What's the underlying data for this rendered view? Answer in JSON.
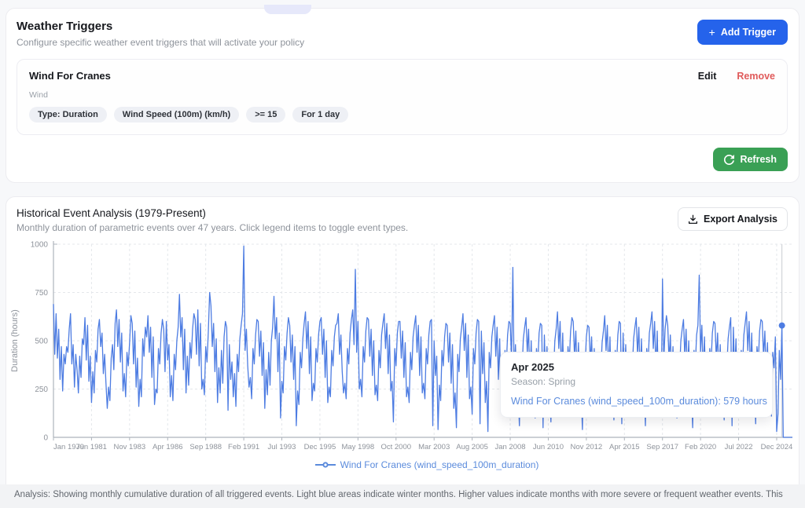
{
  "weather_triggers": {
    "title": "Weather Triggers",
    "subtitle": "Configure specific weather event triggers that will activate your policy",
    "add_button_label": "Add Trigger",
    "trigger": {
      "name": "Wind For Cranes",
      "category": "Wind",
      "edit_label": "Edit",
      "remove_label": "Remove",
      "tags": [
        "Type: Duration",
        "Wind Speed (100m) (km/h)",
        ">= 15",
        "For 1 day"
      ]
    },
    "refresh_button_label": "Refresh"
  },
  "analysis_section": {
    "title": "Historical Event Analysis (1979-Present)",
    "subtitle": "Monthly duration of parametric events over 47 years. Click legend items to toggle event types.",
    "export_button_label": "Export Analysis",
    "tooltip": {
      "title": "Apr 2025",
      "season": "Season: Spring",
      "value_line": "Wind For Cranes (wind_speed_100m_duration): 579 hours"
    },
    "legend_label": "Wind For Cranes (wind_speed_100m_duration)",
    "footer_note": "Analysis: Showing monthly cumulative duration of all triggered events. Light blue areas indicate winter months. Higher values indicate months with more severe or frequent weather events. This"
  },
  "colors": {
    "accent_blue": "#2563eb",
    "green": "#3aa055",
    "red": "#e05b5b",
    "line_blue": "#4d7ce2",
    "link_blue": "#5b8bdc",
    "grid": "#e4e7eb",
    "axis": "#aeb4bc",
    "tick_text": "#8e939b",
    "crosshair": "#c9ccd2"
  },
  "chart_data": {
    "type": "line",
    "title": "Historical Event Analysis (1979-Present)",
    "ylabel": "Duration (hours)",
    "ylim": [
      0,
      1000
    ],
    "yticks": [
      0,
      250,
      500,
      750,
      1000
    ],
    "grid": "dashed",
    "legend_position": "bottom",
    "x_start": "Jan 1979",
    "x_end": "Dec 2025",
    "xtick_indices": [
      0,
      29,
      58,
      87,
      116,
      145,
      174,
      203,
      232,
      261,
      290,
      319,
      348,
      377,
      406,
      435,
      464,
      493,
      522,
      551
    ],
    "xticklabels": [
      "Jan 1979",
      "Jun 1981",
      "Nov 1983",
      "Apr 1986",
      "Sep 1988",
      "Feb 1991",
      "Jul 1993",
      "Dec 1995",
      "May 1998",
      "Oct 2000",
      "Mar 2003",
      "Aug 2005",
      "Jan 2008",
      "Jun 2010",
      "Nov 2012",
      "Apr 2015",
      "Sep 2017",
      "Feb 2020",
      "Jul 2022",
      "Dec 2024"
    ],
    "highlight": {
      "label": "Apr 2025",
      "index": 555,
      "value": 579
    },
    "series": [
      {
        "name": "Wind For Cranes (wind_speed_100m_duration)",
        "color": "#4d7ce2",
        "values": [
          690,
          430,
          640,
          410,
          560,
          300,
          470,
          240,
          430,
          380,
          470,
          440,
          560,
          640,
          380,
          480,
          260,
          430,
          350,
          230,
          420,
          310,
          510,
          480,
          620,
          400,
          580,
          290,
          420,
          180,
          340,
          230,
          450,
          390,
          560,
          610,
          470,
          540,
          330,
          430,
          280,
          150,
          260,
          190,
          410,
          480,
          350,
          590,
          660,
          470,
          610,
          390,
          540,
          240,
          330,
          210,
          440,
          370,
          490,
          630,
          590,
          380,
          550,
          260,
          410,
          160,
          300,
          210,
          510,
          420,
          570,
          520,
          630,
          440,
          570,
          310,
          520,
          170,
          250,
          230,
          460,
          380,
          540,
          610,
          560,
          340,
          600,
          400,
          480,
          210,
          320,
          190,
          430,
          350,
          500,
          570,
          740,
          520,
          620,
          350,
          560,
          230,
          420,
          270,
          490,
          410,
          560,
          640,
          610,
          430,
          660,
          370,
          590,
          250,
          300,
          220,
          470,
          390,
          550,
          750,
          680,
          470,
          590,
          340,
          510,
          180,
          360,
          230,
          450,
          280,
          520,
          600,
          570,
          140,
          480,
          300,
          390,
          210,
          330,
          160,
          430,
          340,
          510,
          580,
          640,
          990,
          450,
          560,
          370,
          260,
          310,
          200,
          460,
          380,
          530,
          610,
          600,
          420,
          550,
          320,
          490,
          150,
          350,
          220,
          440,
          270,
          500,
          570,
          730,
          510,
          620,
          340,
          540,
          100,
          290,
          230,
          470,
          400,
          540,
          620,
          580,
          390,
          530,
          300,
          470,
          60,
          240,
          170,
          440,
          360,
          510,
          590,
          650,
          460,
          600,
          330,
          520,
          190,
          280,
          240,
          460,
          390,
          530,
          600,
          620,
          430,
          560,
          310,
          500,
          180,
          260,
          210,
          450,
          370,
          520,
          580,
          590,
          640,
          430,
          530,
          340,
          230,
          280,
          200,
          460,
          380,
          540,
          610,
          660,
          480,
          870,
          440,
          600,
          250,
          300,
          210,
          470,
          390,
          550,
          620,
          610,
          420,
          560,
          320,
          500,
          220,
          270,
          190,
          450,
          360,
          530,
          590,
          640,
          460,
          590,
          330,
          530,
          240,
          290,
          80,
          460,
          370,
          540,
          600,
          600,
          410,
          550,
          310,
          490,
          210,
          260,
          180,
          440,
          350,
          520,
          580,
          630,
          440,
          580,
          320,
          520,
          230,
          280,
          200,
          460,
          380,
          530,
          600,
          610,
          60,
          500,
          320,
          420,
          40,
          270,
          190,
          450,
          370,
          520,
          590,
          580,
          390,
          540,
          280,
          480,
          150,
          230,
          50,
          430,
          340,
          510,
          570,
          640,
          450,
          590,
          310,
          530,
          200,
          260,
          120,
          460,
          380,
          540,
          610,
          600,
          70,
          550,
          330,
          490,
          180,
          290,
          30,
          440,
          360,
          520,
          580,
          630,
          420,
          570,
          300,
          510,
          160,
          270,
          140,
          450,
          370,
          530,
          600,
          590,
          400,
          880,
          320,
          480,
          190,
          250,
          60,
          430,
          350,
          510,
          570,
          620,
          440,
          560,
          290,
          500,
          170,
          280,
          100,
          460,
          380,
          540,
          590,
          580,
          50,
          530,
          310,
          470,
          150,
          240,
          80,
          420,
          340,
          500,
          560,
          650,
          460,
          600,
          330,
          540,
          210,
          290,
          130,
          470,
          390,
          550,
          620,
          600,
          420,
          550,
          300,
          490,
          180,
          260,
          40,
          440,
          360,
          520,
          580,
          570,
          390,
          520,
          280,
          460,
          140,
          230,
          110,
          410,
          330,
          490,
          550,
          630,
          450,
          580,
          320,
          520,
          200,
          280,
          90,
          450,
          370,
          530,
          600,
          590,
          70,
          540,
          300,
          480,
          160,
          250,
          120,
          430,
          350,
          510,
          570,
          620,
          430,
          570,
          310,
          510,
          190,
          270,
          60,
          460,
          380,
          540,
          590,
          650,
          460,
          600,
          340,
          550,
          220,
          300,
          140,
          820,
          400,
          560,
          630,
          580,
          400,
          530,
          290,
          470,
          150,
          240,
          100,
          420,
          340,
          500,
          560,
          610,
          420,
          560,
          310,
          500,
          180,
          260,
          50,
          450,
          370,
          530,
          580,
          840,
          440,
          580,
          320,
          520,
          200,
          280,
          120,
          460,
          380,
          540,
          600,
          590,
          410,
          540,
          300,
          480,
          160,
          250,
          90,
          430,
          350,
          510,
          570,
          620,
          60,
          570,
          320,
          510,
          190,
          270,
          130,
          450,
          370,
          530,
          590,
          650,
          450,
          600,
          330,
          540,
          210,
          290,
          70,
          470,
          390,
          550,
          610,
          600,
          420,
          550,
          310,
          490,
          170,
          260,
          110,
          440,
          360,
          520,
          30,
          120,
          450,
          300,
          579,
          0,
          0,
          0,
          0,
          0,
          0,
          0,
          0
        ]
      }
    ]
  }
}
